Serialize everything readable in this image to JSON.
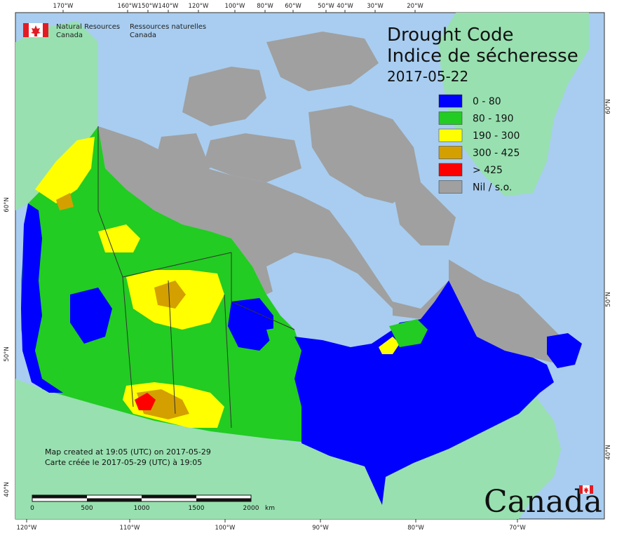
{
  "header": {
    "org_en_line1": "Natural Resources",
    "org_en_line2": "Canada",
    "org_fr_line1": "Ressources naturelles",
    "org_fr_line2": "Canada"
  },
  "title": {
    "line1": "Drought Code",
    "line2": "Indice de sécheresse",
    "date": "2017-05-22"
  },
  "legend": [
    {
      "label": "0 - 80",
      "color": "#0000ff"
    },
    {
      "label": "80 - 190",
      "color": "#22cc22"
    },
    {
      "label": "190 - 300",
      "color": "#ffff00"
    },
    {
      "label": "300 - 425",
      "color": "#d4a000"
    },
    {
      "label": "> 425",
      "color": "#ff0000"
    },
    {
      "label": "Nil / s.o.",
      "color": "#a0a0a0"
    }
  ],
  "colors": {
    "water": "#a8cdf0",
    "foreign_land": "#98e0b0",
    "nodata": "#a0a0a0"
  },
  "top_ticks": [
    "170°W",
    "160°W",
    "150°W",
    "140°W",
    "120°W",
    "100°W",
    "80°W",
    "60°W",
    "50°W",
    "40°W",
    "30°W",
    "20°W"
  ],
  "bottom_ticks": [
    "120°W",
    "110°W",
    "100°W",
    "90°W",
    "80°W",
    "70°W"
  ],
  "left_ticks": [
    "60°N",
    "50°N",
    "40°N"
  ],
  "right_ticks": [
    "60°N",
    "50°N",
    "40°N"
  ],
  "note": {
    "line1": "Map created at 19:05 (UTC) on 2017-05-29",
    "line2": "Carte créée le 2017-05-29 (UTC) à 19:05"
  },
  "scalebar": {
    "labels": [
      "0",
      "500",
      "1000",
      "1500",
      "2000"
    ],
    "unit": "km"
  },
  "wordmark": "Canada"
}
